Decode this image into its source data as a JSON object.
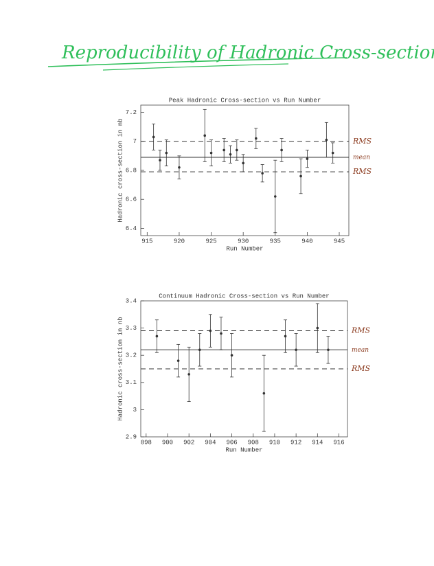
{
  "page_title": "Reproducibility of Hadronic Cross-section",
  "chart_data": [
    {
      "type": "scatter",
      "title": "Peak Hadronic Cross-section vs Run Number",
      "x_label": "Run Number",
      "y_label": "Hadronic cross-section in nb",
      "xlim": [
        914,
        946.5
      ],
      "xticks": [
        915,
        920,
        925,
        930,
        935,
        940,
        945
      ],
      "ylim": [
        6.35,
        7.25
      ],
      "yticks": [
        6.4,
        6.6,
        6.8,
        7,
        7.2
      ],
      "series": [
        {
          "color": "#333333",
          "x": [
            916,
            917,
            918,
            920,
            924,
            925,
            927,
            928,
            929,
            930,
            932,
            933,
            935,
            936,
            939,
            940,
            943,
            944
          ],
          "values": [
            7.03,
            6.87,
            6.92,
            6.82,
            7.04,
            6.92,
            6.94,
            6.91,
            6.94,
            6.85,
            7.02,
            6.78,
            6.62,
            6.94,
            6.76,
            6.88,
            7.01,
            6.92
          ],
          "errors": [
            0.09,
            0.07,
            0.09,
            0.08,
            0.18,
            0.09,
            0.08,
            0.06,
            0.07,
            0.06,
            0.07,
            0.06,
            0.25,
            0.08,
            0.12,
            0.06,
            0.12,
            0.07
          ]
        }
      ],
      "reference_lines": [
        {
          "label": "RMS",
          "value": 7.0,
          "style": "dashed"
        },
        {
          "label": "mean",
          "value": 6.89,
          "style": "solid"
        },
        {
          "label": "RMS",
          "value": 6.79,
          "style": "dashed"
        }
      ]
    },
    {
      "type": "scatter",
      "title": "Continuum Hadronic Cross-section vs Run Number",
      "x_label": "Run Number",
      "y_label": "Hadronic cross-section in nb",
      "xlim": [
        897.5,
        916.8
      ],
      "xticks": [
        898,
        900,
        902,
        904,
        906,
        908,
        910,
        912,
        914,
        916
      ],
      "ylim": [
        2.9,
        3.4
      ],
      "yticks": [
        2.9,
        3,
        3.1,
        3.2,
        3.3,
        3.4
      ],
      "series": [
        {
          "color": "#333333",
          "x": [
            899,
            901,
            902,
            903,
            904,
            905,
            906,
            909,
            911,
            912,
            914,
            915
          ],
          "values": [
            3.27,
            3.18,
            3.13,
            3.22,
            3.29,
            3.28,
            3.2,
            3.06,
            3.27,
            3.22,
            3.3,
            3.22
          ],
          "errors": [
            0.06,
            0.06,
            0.1,
            0.06,
            0.06,
            0.06,
            0.08,
            0.14,
            0.06,
            0.06,
            0.09,
            0.05
          ]
        }
      ],
      "reference_lines": [
        {
          "label": "RMS",
          "value": 3.29,
          "style": "dashed"
        },
        {
          "label": "mean",
          "value": 3.22,
          "style": "solid"
        },
        {
          "label": "RMS",
          "value": 3.15,
          "style": "dashed"
        }
      ]
    }
  ]
}
